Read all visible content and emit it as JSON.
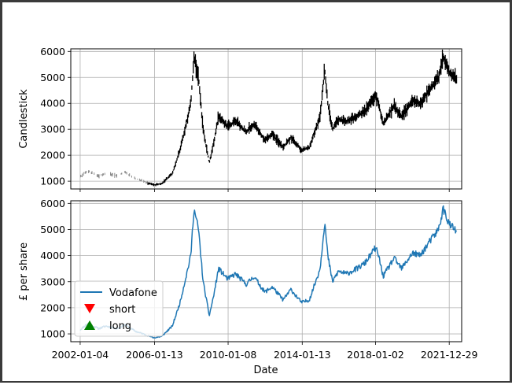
{
  "chart_data": [
    {
      "type": "candlestick",
      "ylabel": "Candlestick",
      "ylim": [
        700,
        6100
      ],
      "yticks": [
        1000,
        2000,
        3000,
        4000,
        5000,
        6000
      ],
      "xlim": [
        "2001-07-01",
        "2022-09-01"
      ],
      "grid": true,
      "colors": {
        "early_segment": "#808080",
        "main": "#000000"
      },
      "x": [
        "2002-01",
        "2002-06",
        "2003-01",
        "2003-06",
        "2004-01",
        "2004-06",
        "2005-01",
        "2005-06",
        "2006-01",
        "2006-06",
        "2007-01",
        "2007-06",
        "2008-01",
        "2008-03",
        "2008-06",
        "2008-09",
        "2009-01",
        "2009-04",
        "2009-07",
        "2010-01",
        "2010-06",
        "2011-01",
        "2011-06",
        "2012-01",
        "2012-06",
        "2013-01",
        "2013-06",
        "2014-01",
        "2014-06",
        "2015-01",
        "2015-04",
        "2015-06",
        "2015-09",
        "2016-01",
        "2016-06",
        "2017-01",
        "2017-06",
        "2018-01",
        "2018-03",
        "2018-06",
        "2018-09",
        "2019-01",
        "2019-06",
        "2020-01",
        "2020-06",
        "2021-01",
        "2021-06",
        "2021-09",
        "2022-01",
        "2022-06"
      ],
      "values": [
        1150,
        1400,
        1200,
        1300,
        1200,
        1350,
        1100,
        1000,
        850,
        900,
        1300,
        2200,
        4000,
        5800,
        5000,
        3000,
        1700,
        2500,
        3500,
        3100,
        3300,
        2900,
        3200,
        2600,
        2800,
        2300,
        2700,
        2200,
        2300,
        3500,
        5300,
        4000,
        3000,
        3400,
        3300,
        3500,
        3700,
        4300,
        4000,
        3200,
        3500,
        3900,
        3500,
        4100,
        4000,
        4600,
        5000,
        5800,
        5200,
        4900
      ]
    },
    {
      "type": "line",
      "xlabel": "Date",
      "ylabel": "£ per share",
      "ylim": [
        700,
        6100
      ],
      "yticks": [
        1000,
        2000,
        3000,
        4000,
        5000,
        6000
      ],
      "xlim": [
        "2001-07-01",
        "2022-09-01"
      ],
      "xtick_labels": [
        "2002-01-04",
        "2006-01-13",
        "2010-01-08",
        "2014-01-13",
        "2018-01-02",
        "2021-12-29"
      ],
      "grid": true,
      "legend_position": "lower-left",
      "legend": [
        {
          "label": "Vodafone",
          "marker": "line",
          "color": "#1f77b4"
        },
        {
          "label": "short",
          "marker": "triangle-down",
          "color": "#ff0000"
        },
        {
          "label": "long",
          "marker": "triangle-up",
          "color": "#008000"
        }
      ],
      "series": [
        {
          "color": "#1f77b4",
          "x": [
            "2002-01",
            "2002-06",
            "2003-01",
            "2003-06",
            "2004-01",
            "2004-06",
            "2005-01",
            "2005-06",
            "2006-01",
            "2006-06",
            "2007-01",
            "2007-06",
            "2008-01",
            "2008-03",
            "2008-06",
            "2008-09",
            "2009-01",
            "2009-04",
            "2009-07",
            "2010-01",
            "2010-06",
            "2011-01",
            "2011-06",
            "2012-01",
            "2012-06",
            "2013-01",
            "2013-06",
            "2014-01",
            "2014-06",
            "2015-01",
            "2015-04",
            "2015-06",
            "2015-09",
            "2016-01",
            "2016-06",
            "2017-01",
            "2017-06",
            "2018-01",
            "2018-03",
            "2018-06",
            "2018-09",
            "2019-01",
            "2019-06",
            "2020-01",
            "2020-06",
            "2021-01",
            "2021-06",
            "2021-09",
            "2022-01",
            "2022-06"
          ],
          "values": [
            1150,
            1400,
            1200,
            1300,
            1200,
            1350,
            1100,
            1000,
            850,
            900,
            1300,
            2200,
            4000,
            5800,
            5000,
            3000,
            1700,
            2500,
            3500,
            3100,
            3300,
            2900,
            3200,
            2600,
            2800,
            2300,
            2700,
            2200,
            2300,
            3500,
            5300,
            4000,
            3000,
            3400,
            3300,
            3500,
            3700,
            4300,
            4000,
            3200,
            3500,
            3900,
            3500,
            4100,
            4000,
            4600,
            5000,
            5800,
            5200,
            4900
          ]
        }
      ]
    }
  ]
}
